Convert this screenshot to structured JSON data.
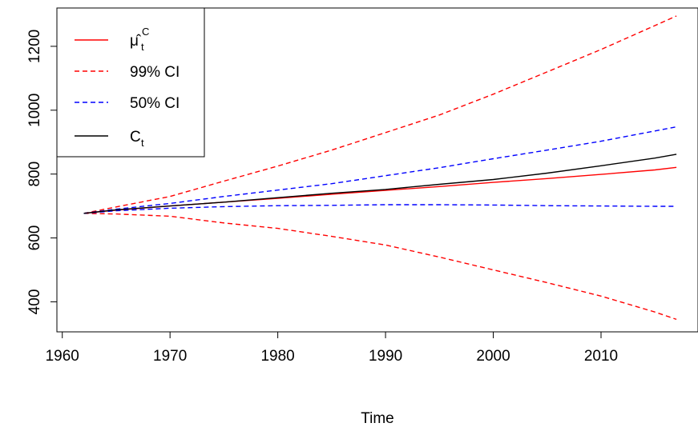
{
  "chart_data": {
    "type": "line",
    "title": "",
    "xlabel": "Time",
    "ylabel": "",
    "xlim": [
      1959.5,
      2019
    ],
    "ylim": [
      306,
      1320
    ],
    "x_ticks": [
      1960,
      1970,
      1980,
      1990,
      2000,
      2010
    ],
    "y_ticks": [
      400,
      600,
      800,
      1000,
      1200
    ],
    "grid": false,
    "legend_position": "top-left",
    "legend": [
      {
        "base": "μ̂",
        "sub": "t",
        "sup": "C",
        "color": "#ff0000",
        "dash": "solid"
      },
      {
        "label": "99% CI",
        "color": "#ff0000",
        "dash": "dashed"
      },
      {
        "label": "50% CI",
        "color": "#0000ff",
        "dash": "dashed"
      },
      {
        "base": "C",
        "sub": "t",
        "color": "#000000",
        "dash": "solid"
      }
    ],
    "x": [
      1962,
      1965,
      1970,
      1975,
      1980,
      1985,
      1990,
      1995,
      2000,
      2005,
      2010,
      2015,
      2017
    ],
    "series": [
      {
        "color": "#ff0000",
        "dash": "solid",
        "values": [
          677,
          687,
          700,
          712,
          724,
          737,
          749,
          761,
          774,
          786,
          799,
          813,
          821
        ]
      },
      {
        "color": "#ff0000",
        "dash": "dashed",
        "values": [
          677,
          697,
          730,
          778,
          825,
          875,
          930,
          985,
          1050,
          1120,
          1190,
          1265,
          1295
        ]
      },
      {
        "color": "#ff0000",
        "dash": "dashed",
        "values": [
          677,
          675,
          668,
          647,
          630,
          605,
          578,
          540,
          500,
          460,
          418,
          368,
          345
        ]
      },
      {
        "color": "#0000ff",
        "dash": "dashed",
        "values": [
          677,
          690,
          708,
          730,
          750,
          770,
          795,
          820,
          848,
          875,
          903,
          935,
          948
        ]
      },
      {
        "color": "#0000ff",
        "dash": "dashed",
        "values": [
          677,
          685,
          693,
          698,
          701,
          702,
          704,
          704,
          703,
          701,
          700,
          699,
          699
        ]
      },
      {
        "color": "#000000",
        "dash": "solid",
        "values": [
          677,
          688,
          700,
          712,
          726,
          740,
          752,
          768,
          783,
          803,
          826,
          850,
          862
        ]
      }
    ]
  }
}
